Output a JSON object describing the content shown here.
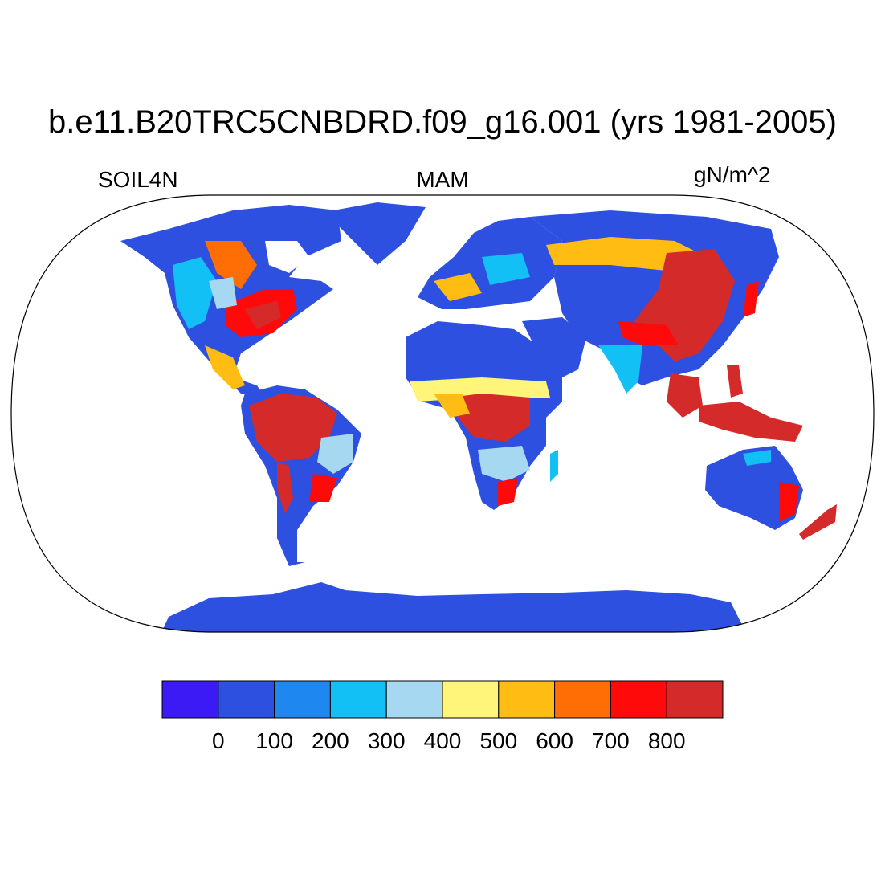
{
  "title": "b.e11.B20TRC5CNBDRD.f09_g16.001 (yrs 1981-2005)",
  "left_label": "SOIL4N",
  "center_label": "MAM",
  "right_label": "gN/m^2",
  "colorbar": {
    "colors": [
      "#3c1af5",
      "#2d50e0",
      "#1e88f0",
      "#12c0f5",
      "#a6d8f2",
      "#fff57a",
      "#ffbd14",
      "#ff6e05",
      "#ff0a0a",
      "#d42a2a"
    ],
    "tick_labels": [
      "0",
      "100",
      "200",
      "300",
      "400",
      "500",
      "600",
      "700",
      "800"
    ]
  },
  "regions": [
    {
      "name": "North America",
      "dominant_color": "#2d50e0"
    },
    {
      "name": "Eastern United States",
      "dominant_color": "#ff0a0a"
    },
    {
      "name": "Amazon",
      "dominant_color": "#d42a2a"
    },
    {
      "name": "Central Africa",
      "dominant_color": "#d42a2a"
    },
    {
      "name": "Sahara",
      "dominant_color": "#2d50e0"
    },
    {
      "name": "Southeast Asia",
      "dominant_color": "#d42a2a"
    },
    {
      "name": "Australia",
      "dominant_color": "#2d50e0"
    },
    {
      "name": "Antarctica",
      "dominant_color": "#2d50e0"
    },
    {
      "name": "Greenland",
      "dominant_color": "#2d50e0"
    }
  ]
}
